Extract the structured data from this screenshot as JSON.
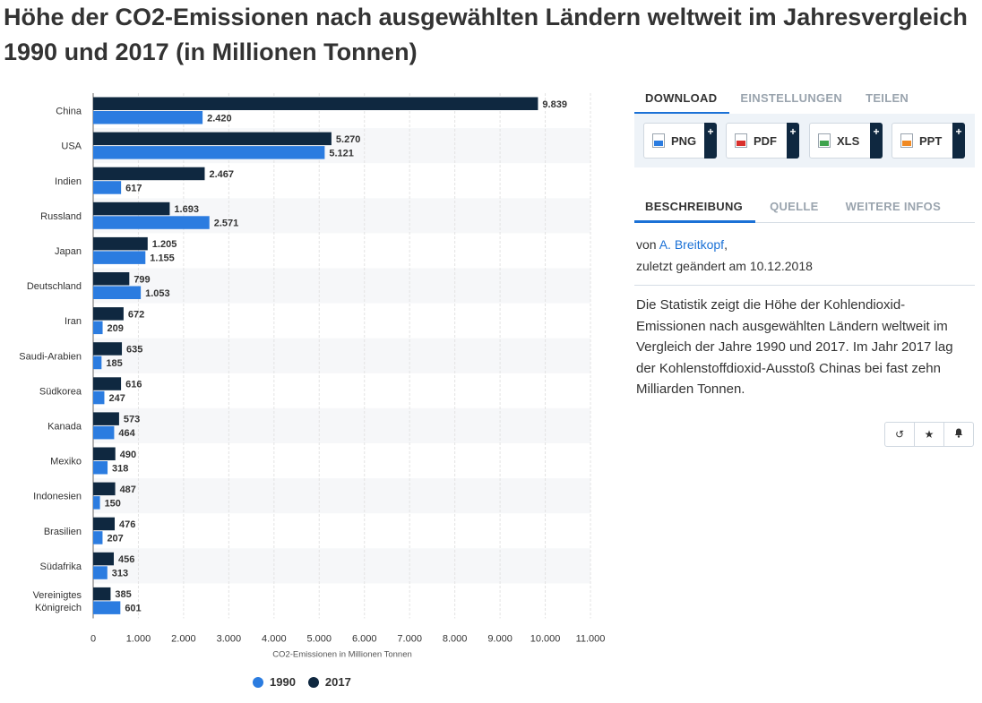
{
  "title": "Höhe der CO2-Emissionen nach ausgewählten Ländern weltweit im Jahresvergleich 1990 und 2017 (in Millionen Tonnen)",
  "download_tabs": [
    "DOWNLOAD",
    "EINSTELLUNGEN",
    "TEILEN"
  ],
  "download_buttons": [
    "PNG",
    "PDF",
    "XLS",
    "PPT"
  ],
  "plus": "+",
  "info_tabs": [
    "BESCHREIBUNG",
    "QUELLE",
    "WEITERE INFOS"
  ],
  "author_prefix": "von ",
  "author": "A. Breitkopf",
  "author_suffix": ",",
  "changed": "zuletzt geändert am 10.12.2018",
  "description": "Die Statistik zeigt die Höhe der Kohlendioxid-Emissionen nach ausgewählten Ländern weltweit im Vergleich der Jahre 1990 und 2017. Im Jahr 2017 lag der Kohlenstoffdioxid-Ausstoß Chinas bei fast zehn Milliarden Tonnen.",
  "action_icons": [
    "history-icon",
    "star-icon",
    "bell-icon"
  ],
  "colors": {
    "s1990": "#2b7ce0",
    "s2017": "#0f2840",
    "accent": "#1b71d6"
  },
  "chart_data": {
    "type": "bar",
    "orientation": "horizontal",
    "title": "Höhe der CO2-Emissionen nach ausgewählten Ländern weltweit im Jahresvergleich 1990 und 2017 (in Millionen Tonnen)",
    "xlabel": "CO2-Emissionen in Millionen Tonnen",
    "ylabel": "",
    "xlim": [
      0,
      11000
    ],
    "xticks": [
      0,
      1000,
      2000,
      3000,
      4000,
      5000,
      6000,
      7000,
      8000,
      9000,
      10000,
      11000
    ],
    "xtick_labels": [
      "0",
      "1.000",
      "2.000",
      "3.000",
      "4.000",
      "5.000",
      "6.000",
      "7.000",
      "8.000",
      "9.000",
      "10.000",
      "11.000"
    ],
    "grid": true,
    "legend_position": "bottom",
    "categories": [
      "China",
      "USA",
      "Indien",
      "Russland",
      "Japan",
      "Deutschland",
      "Iran",
      "Saudi-Arabien",
      "Südkorea",
      "Kanada",
      "Mexiko",
      "Indonesien",
      "Brasilien",
      "Südafrika",
      "Vereinigtes Königreich"
    ],
    "series": [
      {
        "name": "2017",
        "values": [
          9839,
          5270,
          2467,
          1693,
          1205,
          799,
          672,
          635,
          616,
          573,
          490,
          487,
          476,
          456,
          385
        ],
        "labels": [
          "9.839",
          "5.270",
          "2.467",
          "1.693",
          "1.205",
          "799",
          "672",
          "635",
          "616",
          "573",
          "490",
          "487",
          "476",
          "456",
          "385"
        ]
      },
      {
        "name": "1990",
        "values": [
          2420,
          5121,
          617,
          2571,
          1155,
          1053,
          209,
          185,
          247,
          464,
          318,
          150,
          207,
          313,
          601
        ],
        "labels": [
          "2.420",
          "5.121",
          "617",
          "2.571",
          "1.155",
          "1.053",
          "209",
          "185",
          "247",
          "464",
          "318",
          "150",
          "207",
          "313",
          "601"
        ]
      }
    ],
    "legend": [
      "1990",
      "2017"
    ]
  }
}
